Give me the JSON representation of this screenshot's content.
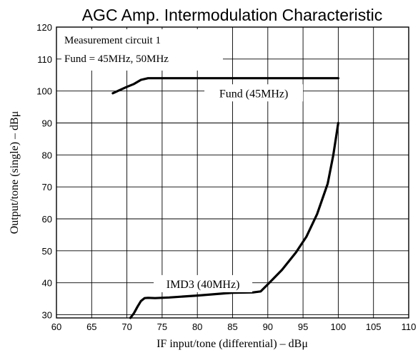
{
  "chart_data": {
    "type": "line",
    "title": "AGC Amp. Intermodulation Characteristic",
    "xlabel": "IF input/tone (differential)  –  dBμ",
    "ylabel": "Output/tone (single)  –  dBμ",
    "xlim": [
      60,
      110
    ],
    "ylim": [
      29,
      120
    ],
    "x_ticks": [
      60,
      65,
      70,
      75,
      80,
      85,
      90,
      95,
      100,
      105,
      110
    ],
    "y_ticks": [
      30,
      40,
      50,
      60,
      70,
      80,
      90,
      100,
      110,
      120
    ],
    "grid": true,
    "annotations": [
      "Measurement circuit 1",
      "Fund = 45MHz, 50MHz"
    ],
    "series": [
      {
        "name": "Fund (45MHz)",
        "x": [
          68,
          69,
          70,
          71,
          72,
          73,
          74,
          80,
          90,
          100
        ],
        "y": [
          99.3,
          100.3,
          101.3,
          102.2,
          103.5,
          104,
          104,
          104,
          104,
          104
        ]
      },
      {
        "name": "IMD3 (40MHz)",
        "x": [
          70.5,
          71,
          71.5,
          72,
          72.5,
          73,
          74,
          76,
          80,
          85,
          88,
          89,
          90,
          92,
          94,
          95.5,
          97,
          98.5,
          99.3,
          100
        ],
        "y": [
          29,
          30.5,
          32.5,
          34.3,
          35.2,
          35.3,
          35.2,
          35.4,
          36,
          36.9,
          37,
          37.3,
          39.5,
          44,
          49.5,
          54.5,
          61.5,
          71,
          80,
          90
        ]
      }
    ]
  }
}
